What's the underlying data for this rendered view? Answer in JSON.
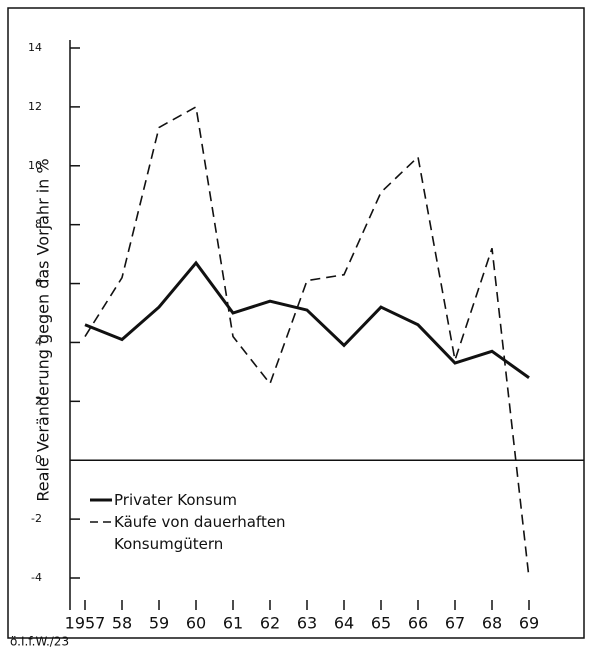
{
  "chart_data": {
    "type": "line",
    "y_label": "Reale Veränderung gegen das Vorjahr in %",
    "footnote": "ö.I.f.W./23",
    "categories": [
      "1957",
      "58",
      "59",
      "60",
      "61",
      "62",
      "63",
      "64",
      "65",
      "66",
      "67",
      "68",
      "69"
    ],
    "series": [
      {
        "name": "Privater Konsum",
        "color": "#111111",
        "dash": "solid",
        "values": [
          4.6,
          4.1,
          5.2,
          6.7,
          5.0,
          5.4,
          5.1,
          3.9,
          5.2,
          4.6,
          3.3,
          3.7,
          2.8
        ]
      },
      {
        "name": "Käufe von dauerhaften Konsumgütern",
        "color": "#111111",
        "dash": "dashed",
        "values": [
          4.2,
          6.2,
          11.3,
          12.0,
          4.2,
          2.6,
          6.1,
          6.3,
          9.1,
          10.3,
          3.4,
          7.2,
          -4.0
        ]
      }
    ],
    "ylim": [
      -4,
      14
    ],
    "yticks": [
      -4,
      -2,
      0,
      2,
      4,
      6,
      8,
      10,
      12,
      14
    ]
  }
}
